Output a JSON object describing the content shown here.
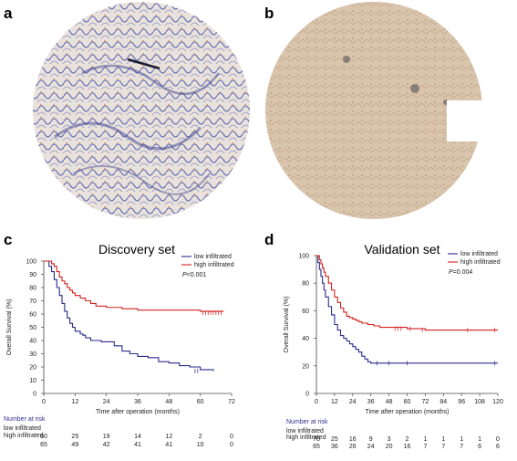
{
  "panel_letters": {
    "a": "a",
    "b": "b",
    "c": "c",
    "d": "d"
  },
  "colors": {
    "low": "#2b2b8c",
    "high": "#d42020"
  },
  "chart_data": [
    {
      "type": "line",
      "title": "Discovery set",
      "xlabel": "Time after operation (months)",
      "ylabel": "Overall Survival (%)",
      "xlim": [
        0,
        72
      ],
      "ylim": [
        0,
        100
      ],
      "xticks": [
        0,
        12,
        24,
        36,
        48,
        60,
        72
      ],
      "yticks": [
        0,
        10,
        20,
        30,
        40,
        50,
        60,
        70,
        80,
        90,
        100
      ],
      "pvalue": {
        "italic": "P",
        "rest": "<0.001"
      },
      "series": [
        {
          "name": "low infiltrated",
          "color": "#2b2b8c",
          "x": [
            0,
            2,
            3,
            4,
            5,
            6,
            7,
            8,
            9,
            10,
            11,
            12,
            14,
            15,
            16,
            18,
            20,
            22,
            24,
            27,
            30,
            33,
            36,
            40,
            44,
            48,
            52,
            56,
            60,
            65
          ],
          "y": [
            100,
            96,
            92,
            86,
            80,
            74,
            68,
            62,
            57,
            53,
            50,
            47,
            45,
            44,
            42,
            40,
            40,
            39,
            39,
            36,
            32,
            30,
            28,
            27,
            24,
            23,
            21,
            20,
            18,
            17
          ],
          "censors": [
            [
              58,
              17
            ],
            [
              59,
              17
            ]
          ]
        },
        {
          "name": "high infiltrated",
          "color": "#d42020",
          "x": [
            0,
            3,
            4,
            5,
            6,
            7,
            8,
            9,
            10,
            11,
            12,
            14,
            16,
            18,
            20,
            24,
            30,
            36,
            40,
            44,
            48,
            56,
            60,
            66,
            69
          ],
          "y": [
            100,
            98,
            96,
            92,
            88,
            85,
            83,
            80,
            78,
            76,
            74,
            72,
            70,
            68,
            66,
            65,
            64,
            63,
            63,
            63,
            63,
            63,
            62,
            62,
            62
          ],
          "censors": [
            [
              61,
              61
            ],
            [
              62,
              61
            ],
            [
              63,
              61
            ],
            [
              64,
              61
            ],
            [
              65,
              61
            ],
            [
              66,
              61
            ],
            [
              67,
              61
            ],
            [
              68,
              61
            ]
          ]
        }
      ],
      "risk_table": {
        "header": "Number at risk",
        "rows": [
          {
            "label": "low infiltrated",
            "values": [
              "50",
              "25",
              "19",
              "14",
              "12",
              "2",
              "0"
            ]
          },
          {
            "label": "high infiltrated",
            "values": [
              "65",
              "49",
              "42",
              "41",
              "41",
              "10",
              "0"
            ]
          }
        ]
      }
    },
    {
      "type": "line",
      "title": "Validation set",
      "xlabel": "Time after operation (months)",
      "ylabel": "Overall Survival (%)",
      "xlim": [
        0,
        120
      ],
      "ylim": [
        0,
        100
      ],
      "xticks": [
        0,
        12,
        24,
        36,
        48,
        60,
        72,
        84,
        96,
        108,
        120
      ],
      "yticks": [
        0,
        20,
        40,
        60,
        80,
        100
      ],
      "pvalue": {
        "italic": "P",
        "rest": "=0.004"
      },
      "series": [
        {
          "name": "low infiltrated",
          "color": "#2b2b8c",
          "x": [
            0,
            1,
            2,
            3,
            4,
            5,
            6,
            8,
            10,
            12,
            14,
            16,
            18,
            20,
            22,
            24,
            26,
            28,
            30,
            32,
            34,
            36,
            40,
            120
          ],
          "y": [
            100,
            95,
            90,
            85,
            80,
            75,
            70,
            63,
            57,
            50,
            46,
            42,
            40,
            38,
            36,
            34,
            32,
            30,
            27,
            25,
            23,
            22,
            22,
            22
          ],
          "censors": [
            [
              40,
              22
            ],
            [
              48,
              22
            ],
            [
              60,
              22
            ],
            [
              118,
              22
            ]
          ]
        },
        {
          "name": "high infiltrated",
          "color": "#d42020",
          "x": [
            0,
            2,
            3,
            4,
            5,
            6,
            8,
            10,
            12,
            14,
            16,
            18,
            20,
            22,
            24,
            26,
            28,
            30,
            34,
            38,
            42,
            48,
            60,
            72,
            84,
            96,
            108,
            120
          ],
          "y": [
            100,
            97,
            94,
            91,
            88,
            85,
            80,
            75,
            70,
            66,
            62,
            59,
            56,
            55,
            54,
            53,
            52,
            51,
            50,
            49,
            48,
            48,
            47,
            46,
            46,
            46,
            46,
            46
          ],
          "censors": [
            [
              52,
              47
            ],
            [
              54,
              47
            ],
            [
              56,
              47
            ],
            [
              62,
              47
            ],
            [
              70,
              46
            ],
            [
              100,
              46
            ],
            [
              118,
              46
            ]
          ]
        }
      ],
      "risk_table": {
        "header": "Number at risk",
        "rows": [
          {
            "label": "low infiltrated",
            "values": [
              "70",
              "25",
              "16",
              "9",
              "3",
              "2",
              "1",
              "1",
              "1",
              "1",
              "0"
            ]
          },
          {
            "label": "high infiltrated",
            "values": [
              "65",
              "36",
              "26",
              "24",
              "20",
              "16",
              "7",
              "7",
              "7",
              "6",
              "6"
            ]
          }
        ]
      }
    }
  ]
}
